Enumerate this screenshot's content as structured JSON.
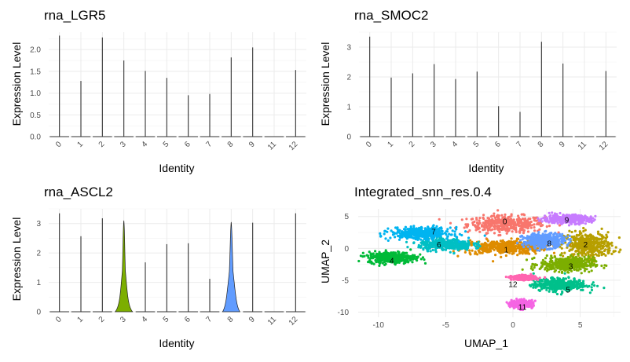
{
  "chart_data": [
    {
      "type": "violin",
      "title": "rna_LGR5",
      "xlabel": "Identity",
      "ylabel": "Expression Level",
      "categories": [
        "0",
        "1",
        "2",
        "3",
        "4",
        "5",
        "6",
        "7",
        "8",
        "9",
        "11",
        "12"
      ],
      "max_values": [
        2.32,
        1.28,
        2.28,
        1.75,
        1.51,
        1.35,
        0.95,
        0.98,
        1.82,
        2.05,
        0,
        1.53
      ],
      "violin_width": [
        0,
        0,
        0,
        0,
        0,
        0,
        0,
        0,
        0,
        0,
        0,
        0
      ],
      "ylim": [
        0,
        2.4
      ],
      "yticks": [
        "0.0",
        "0.5",
        "1.0",
        "1.5",
        "2.0"
      ],
      "ytick_values": [
        0,
        0.5,
        1,
        1.5,
        2
      ]
    },
    {
      "type": "violin",
      "title": "rna_SMOC2",
      "xlabel": "Identity",
      "ylabel": "Expression Level",
      "categories": [
        "0",
        "1",
        "2",
        "3",
        "4",
        "5",
        "6",
        "7",
        "8",
        "9",
        "11",
        "12"
      ],
      "max_values": [
        3.35,
        1.98,
        2.12,
        2.43,
        1.93,
        2.18,
        1.02,
        0.83,
        3.18,
        2.45,
        0,
        2.2
      ],
      "violin_width": [
        0,
        0,
        0,
        0,
        0,
        0,
        0,
        0,
        0,
        0,
        0,
        0
      ],
      "ylim": [
        0,
        3.5
      ],
      "yticks": [
        "0",
        "1",
        "2",
        "3"
      ],
      "ytick_values": [
        0,
        1,
        2,
        3
      ]
    },
    {
      "type": "violin",
      "title": "rna_ASCL2",
      "xlabel": "Identity",
      "ylabel": "Expression Level",
      "categories": [
        "0",
        "1",
        "2",
        "3",
        "4",
        "5",
        "6",
        "7",
        "8",
        "9",
        "11",
        "12"
      ],
      "max_values": [
        3.35,
        2.57,
        3.18,
        3.1,
        1.68,
        2.3,
        2.33,
        1.12,
        3.05,
        3.03,
        0,
        3.35
      ],
      "violin_width": [
        0,
        0,
        0,
        0.45,
        0,
        0,
        0,
        0,
        0.55,
        0,
        0,
        0
      ],
      "violin_colors": [
        "#F8766D",
        "#DE8C00",
        "#B79F00",
        "#7CAE00",
        "#00BA38",
        "#00C08B",
        "#00BFC4",
        "#00B4F0",
        "#619CFF",
        "#C77CFF",
        "#F564E3",
        "#FF64B0"
      ],
      "ylim": [
        0,
        3.5
      ],
      "yticks": [
        "0",
        "1",
        "2",
        "3"
      ],
      "ytick_values": [
        0,
        1,
        2,
        3
      ]
    },
    {
      "type": "scatter",
      "title": "Integrated_snn_res.0.4",
      "xlabel": "UMAP_1",
      "ylabel": "UMAP_2",
      "xlim": [
        -11.5,
        8
      ],
      "ylim": [
        -10.8,
        6.2
      ],
      "xticks": [
        "-10",
        "-5",
        "0",
        "5"
      ],
      "xtick_values": [
        -10,
        -5,
        0,
        5
      ],
      "yticks": [
        "-10",
        "-5",
        "0",
        "5"
      ],
      "ytick_values": [
        -10,
        -5,
        0,
        5
      ],
      "clusters": [
        {
          "name": "0",
          "color": "#F8766D",
          "center": [
            -0.5,
            3.8
          ],
          "spread": [
            2.6,
            1.2
          ],
          "label_pos": [
            -0.6,
            4.2
          ]
        },
        {
          "name": "1",
          "color": "#DE8C00",
          "center": [
            -0.6,
            0.2
          ],
          "spread": [
            2.8,
            1.0
          ],
          "label_pos": [
            -0.5,
            -0.2
          ]
        },
        {
          "name": "2",
          "color": "#B79F00",
          "center": [
            5.6,
            0.5
          ],
          "spread": [
            1.6,
            1.8
          ],
          "label_pos": [
            5.4,
            0.6
          ]
        },
        {
          "name": "3",
          "color": "#7CAE00",
          "center": [
            4.0,
            -2.5
          ],
          "spread": [
            1.8,
            1.0
          ],
          "label_pos": [
            4.3,
            -2.8
          ]
        },
        {
          "name": "4",
          "color": "#00BA38",
          "center": [
            -9.0,
            -1.4
          ],
          "spread": [
            1.6,
            0.8
          ],
          "label_pos": [
            -9.0,
            -1.9
          ]
        },
        {
          "name": "5",
          "color": "#00C08B",
          "center": [
            3.5,
            -5.7
          ],
          "spread": [
            1.8,
            0.9
          ],
          "label_pos": [
            4.1,
            -6.5
          ]
        },
        {
          "name": "6",
          "color": "#00BFC4",
          "center": [
            -5.0,
            0.6
          ],
          "spread": [
            1.8,
            0.8
          ],
          "label_pos": [
            -5.5,
            0.6
          ]
        },
        {
          "name": "7",
          "color": "#00B4F0",
          "center": [
            -6.8,
            2.4
          ],
          "spread": [
            2.0,
            0.8
          ],
          "label_pos": [
            -5.9,
            2.6
          ]
        },
        {
          "name": "8",
          "color": "#619CFF",
          "center": [
            2.3,
            1.2
          ],
          "spread": [
            1.4,
            1.0
          ],
          "label_pos": [
            2.7,
            0.8
          ]
        },
        {
          "name": "9",
          "color": "#C77CFF",
          "center": [
            4.0,
            4.6
          ],
          "spread": [
            1.6,
            0.6
          ],
          "label_pos": [
            4.0,
            4.5
          ]
        },
        {
          "name": "11",
          "color": "#F564E3",
          "center": [
            0.7,
            -8.7
          ],
          "spread": [
            0.7,
            0.5
          ],
          "label_pos": [
            0.7,
            -9.2
          ]
        },
        {
          "name": "12",
          "color": "#FF64B0",
          "center": [
            0.8,
            -4.6
          ],
          "spread": [
            0.8,
            0.3
          ],
          "label_pos": [
            0.0,
            -5.6
          ]
        }
      ]
    }
  ]
}
